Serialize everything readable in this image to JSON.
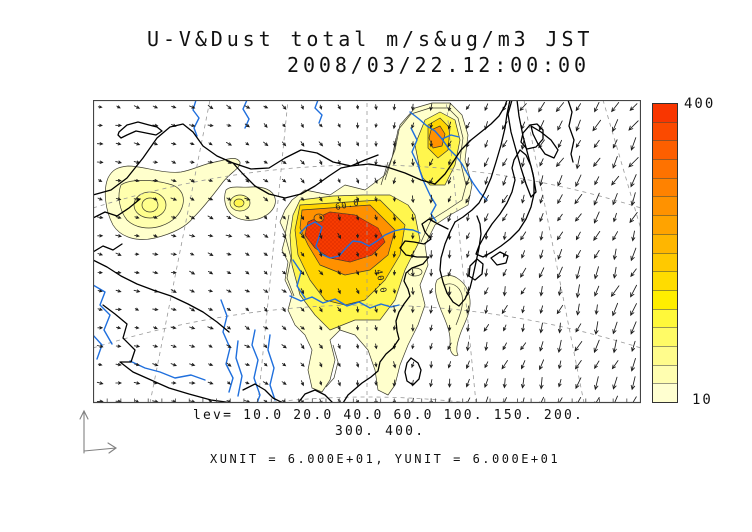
{
  "title": {
    "line1": "U-V&Dust total m/s&ug/m3 JST",
    "line2": "2008/03/22.12:00:00"
  },
  "legend": {
    "lev_line1": "lev= 10.0 20.0 40.0 60.0 100. 150. 200.",
    "lev_line2": "300. 400.",
    "units_line": "XUNIT = 6.000E+01, YUNIT = 6.000E+01"
  },
  "colorbar": {
    "max_label": "400",
    "min_label": "10",
    "colors": [
      "#f93600",
      "#fb4a00",
      "#fd5f00",
      "#fe7200",
      "#ff8200",
      "#ff9200",
      "#ffa300",
      "#ffb600",
      "#ffc900",
      "#ffdc00",
      "#ffee00",
      "#fff83a",
      "#fffb66",
      "#fffc8c",
      "#fffeb0",
      "#ffffd0"
    ]
  },
  "map": {
    "contour_labels": {
      "inner": "60.0",
      "outer": "40.0"
    }
  },
  "palette": {
    "level1": "#ffffcc",
    "level1b": "#ffffae",
    "level2": "#ffff99",
    "level2b": "#ffff8c",
    "level3": "#fff64d",
    "level4": "#ffd400",
    "level5": "#ff9100",
    "level6": "#f93c00",
    "hatch": "#e02e00",
    "river": "#1f6fdd",
    "coast": "#000000",
    "graticule": "#999999",
    "frame": "#444444"
  },
  "wind": {
    "color": "#1a1a1a",
    "grid_dx": 18.4,
    "grid_dy": 18.4
  },
  "chart_data": {
    "type": "heatmap",
    "title": "U-V&Dust total m/s&ug/m3 JST",
    "timestamp": "2008/03/22.12:00:00",
    "timezone": "JST",
    "variable": "Dust total concentration",
    "units": "ug/m3",
    "wind_overlay_units": "m/s",
    "contour_levels": [
      10.0,
      20.0,
      40.0,
      60.0,
      100.0,
      150.0,
      200.0,
      300.0,
      400.0
    ],
    "colorbar_range": [
      10,
      400
    ],
    "xunit": "6.000E+01",
    "yunit": "6.000E+01",
    "region": "East Asia",
    "overlay": "U-V wind vectors",
    "legend_position": "right"
  }
}
